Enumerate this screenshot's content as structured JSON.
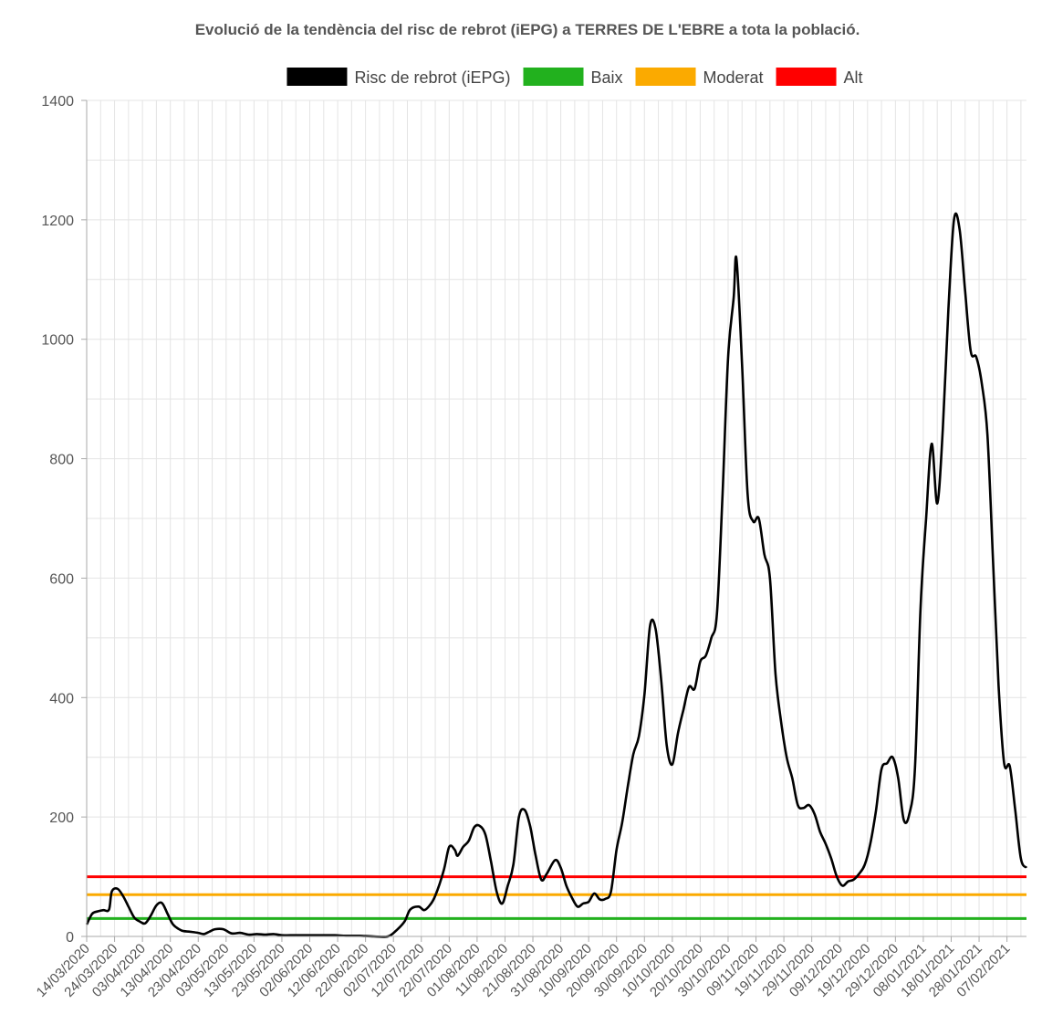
{
  "chart_data": {
    "type": "line",
    "title": "Evolució de la tendència del risc de rebrot (iEPG) a TERRES DE L'EBRE a tota la població.",
    "legend": [
      {
        "label": "Risc de rebrot (iEPG)",
        "color": "#000000"
      },
      {
        "label": "Baix",
        "color": "#22b11e"
      },
      {
        "label": "Moderat",
        "color": "#fbaa00"
      },
      {
        "label": "Alt",
        "color": "#ff0000"
      }
    ],
    "legend_position": "top-center",
    "grid": true,
    "ylim": [
      0,
      1400
    ],
    "y_ticks": [
      "0",
      "200",
      "400",
      "600",
      "800",
      "1000",
      "1200",
      "1400"
    ],
    "x_start": "14/03/2020",
    "x_end": "14/02/2021",
    "x_ticks": [
      "14/03/2020",
      "24/03/2020",
      "03/04/2020",
      "13/04/2020",
      "23/04/2020",
      "03/05/2020",
      "13/05/2020",
      "23/05/2020",
      "02/06/2020",
      "12/06/2020",
      "22/06/2020",
      "02/07/2020",
      "12/07/2020",
      "22/07/2020",
      "01/08/2020",
      "11/08/2020",
      "21/08/2020",
      "31/08/2020",
      "10/09/2020",
      "20/09/2020",
      "30/09/2020",
      "10/10/2020",
      "20/10/2020",
      "30/10/2020",
      "09/11/2020",
      "19/11/2020",
      "29/11/2020",
      "09/12/2020",
      "19/12/2020",
      "29/12/2020",
      "08/01/2021",
      "18/01/2021",
      "28/01/2021",
      "07/02/2021"
    ],
    "thresholds": [
      {
        "name": "Baix",
        "value": 30,
        "color": "#22b11e"
      },
      {
        "name": "Moderat",
        "value": 70,
        "color": "#fbaa00"
      },
      {
        "name": "Alt",
        "value": 100,
        "color": "#ff0000"
      }
    ],
    "series": [
      {
        "name": "Risc de rebrot (iEPG)",
        "color": "#000000",
        "points": [
          [
            "14/03/2020",
            20
          ],
          [
            "16/03/2020",
            38
          ],
          [
            "18/03/2020",
            42
          ],
          [
            "20/03/2020",
            44
          ],
          [
            "22/03/2020",
            45
          ],
          [
            "23/03/2020",
            75
          ],
          [
            "25/03/2020",
            80
          ],
          [
            "27/03/2020",
            68
          ],
          [
            "29/03/2020",
            50
          ],
          [
            "31/03/2020",
            32
          ],
          [
            "02/04/2020",
            25
          ],
          [
            "04/04/2020",
            22
          ],
          [
            "06/04/2020",
            35
          ],
          [
            "08/04/2020",
            52
          ],
          [
            "10/04/2020",
            56
          ],
          [
            "12/04/2020",
            38
          ],
          [
            "14/04/2020",
            20
          ],
          [
            "17/04/2020",
            10
          ],
          [
            "20/04/2020",
            8
          ],
          [
            "23/04/2020",
            6
          ],
          [
            "25/04/2020",
            4
          ],
          [
            "27/04/2020",
            8
          ],
          [
            "29/04/2020",
            12
          ],
          [
            "02/05/2020",
            12
          ],
          [
            "05/05/2020",
            5
          ],
          [
            "08/05/2020",
            6
          ],
          [
            "11/05/2020",
            3
          ],
          [
            "14/05/2020",
            4
          ],
          [
            "17/05/2020",
            3
          ],
          [
            "20/05/2020",
            4
          ],
          [
            "23/05/2020",
            2
          ],
          [
            "26/05/2020",
            2
          ],
          [
            "30/05/2020",
            2
          ],
          [
            "03/06/2020",
            2
          ],
          [
            "07/06/2020",
            2
          ],
          [
            "11/06/2020",
            2
          ],
          [
            "15/06/2020",
            1
          ],
          [
            "20/06/2020",
            1
          ],
          [
            "25/06/2020",
            0
          ],
          [
            "30/06/2020",
            0
          ],
          [
            "03/07/2020",
            10
          ],
          [
            "06/07/2020",
            25
          ],
          [
            "08/07/2020",
            45
          ],
          [
            "11/07/2020",
            50
          ],
          [
            "13/07/2020",
            44
          ],
          [
            "15/07/2020",
            52
          ],
          [
            "17/07/2020",
            68
          ],
          [
            "20/07/2020",
            110
          ],
          [
            "22/07/2020",
            150
          ],
          [
            "24/07/2020",
            145
          ],
          [
            "25/07/2020",
            135
          ],
          [
            "27/07/2020",
            150
          ],
          [
            "29/07/2020",
            160
          ],
          [
            "31/07/2020",
            183
          ],
          [
            "02/08/2020",
            185
          ],
          [
            "04/08/2020",
            170
          ],
          [
            "06/08/2020",
            125
          ],
          [
            "08/08/2020",
            75
          ],
          [
            "10/08/2020",
            55
          ],
          [
            "12/08/2020",
            85
          ],
          [
            "14/08/2020",
            120
          ],
          [
            "16/08/2020",
            200
          ],
          [
            "18/08/2020",
            212
          ],
          [
            "20/08/2020",
            185
          ],
          [
            "22/08/2020",
            135
          ],
          [
            "24/08/2020",
            95
          ],
          [
            "26/08/2020",
            105
          ],
          [
            "29/08/2020",
            128
          ],
          [
            "31/08/2020",
            115
          ],
          [
            "02/09/2020",
            85
          ],
          [
            "04/09/2020",
            65
          ],
          [
            "06/09/2020",
            50
          ],
          [
            "08/09/2020",
            55
          ],
          [
            "10/09/2020",
            58
          ],
          [
            "12/09/2020",
            72
          ],
          [
            "14/09/2020",
            62
          ],
          [
            "16/09/2020",
            63
          ],
          [
            "18/09/2020",
            75
          ],
          [
            "20/09/2020",
            145
          ],
          [
            "22/09/2020",
            190
          ],
          [
            "24/09/2020",
            250
          ],
          [
            "26/09/2020",
            305
          ],
          [
            "28/09/2020",
            335
          ],
          [
            "30/09/2020",
            405
          ],
          [
            "02/10/2020",
            520
          ],
          [
            "04/10/2020",
            515
          ],
          [
            "06/10/2020",
            430
          ],
          [
            "08/10/2020",
            320
          ],
          [
            "10/10/2020",
            288
          ],
          [
            "12/10/2020",
            340
          ],
          [
            "14/10/2020",
            380
          ],
          [
            "16/10/2020",
            418
          ],
          [
            "18/10/2020",
            415
          ],
          [
            "20/10/2020",
            460
          ],
          [
            "22/10/2020",
            470
          ],
          [
            "24/10/2020",
            500
          ],
          [
            "26/10/2020",
            540
          ],
          [
            "28/10/2020",
            740
          ],
          [
            "30/10/2020",
            970
          ],
          [
            "01/11/2020",
            1070
          ],
          [
            "02/11/2020",
            1135
          ],
          [
            "04/11/2020",
            960
          ],
          [
            "06/11/2020",
            740
          ],
          [
            "08/11/2020",
            695
          ],
          [
            "10/11/2020",
            700
          ],
          [
            "12/11/2020",
            640
          ],
          [
            "14/11/2020",
            600
          ],
          [
            "16/11/2020",
            440
          ],
          [
            "18/11/2020",
            360
          ],
          [
            "20/11/2020",
            300
          ],
          [
            "22/11/2020",
            265
          ],
          [
            "24/11/2020",
            220
          ],
          [
            "26/11/2020",
            215
          ],
          [
            "28/11/2020",
            220
          ],
          [
            "30/11/2020",
            205
          ],
          [
            "02/12/2020",
            175
          ],
          [
            "04/12/2020",
            155
          ],
          [
            "06/12/2020",
            130
          ],
          [
            "08/12/2020",
            100
          ],
          [
            "10/12/2020",
            85
          ],
          [
            "12/12/2020",
            92
          ],
          [
            "14/12/2020",
            95
          ],
          [
            "16/12/2020",
            105
          ],
          [
            "18/12/2020",
            120
          ],
          [
            "20/12/2020",
            155
          ],
          [
            "22/12/2020",
            210
          ],
          [
            "24/12/2020",
            280
          ],
          [
            "26/12/2020",
            290
          ],
          [
            "28/12/2020",
            300
          ],
          [
            "30/12/2020",
            265
          ],
          [
            "01/01/2021",
            195
          ],
          [
            "03/01/2021",
            205
          ],
          [
            "05/01/2021",
            280
          ],
          [
            "07/01/2021",
            550
          ],
          [
            "09/01/2021",
            700
          ],
          [
            "11/01/2021",
            825
          ],
          [
            "13/01/2021",
            725
          ],
          [
            "15/01/2021",
            850
          ],
          [
            "17/01/2021",
            1050
          ],
          [
            "19/01/2021",
            1200
          ],
          [
            "21/01/2021",
            1185
          ],
          [
            "23/01/2021",
            1080
          ],
          [
            "25/01/2021",
            980
          ],
          [
            "27/01/2021",
            970
          ],
          [
            "29/01/2021",
            925
          ],
          [
            "31/01/2021",
            840
          ],
          [
            "02/02/2021",
            630
          ],
          [
            "04/02/2021",
            420
          ],
          [
            "06/02/2021",
            290
          ],
          [
            "08/02/2021",
            285
          ],
          [
            "10/02/2021",
            210
          ],
          [
            "12/02/2021",
            130
          ],
          [
            "14/02/2021",
            115
          ]
        ]
      }
    ]
  }
}
